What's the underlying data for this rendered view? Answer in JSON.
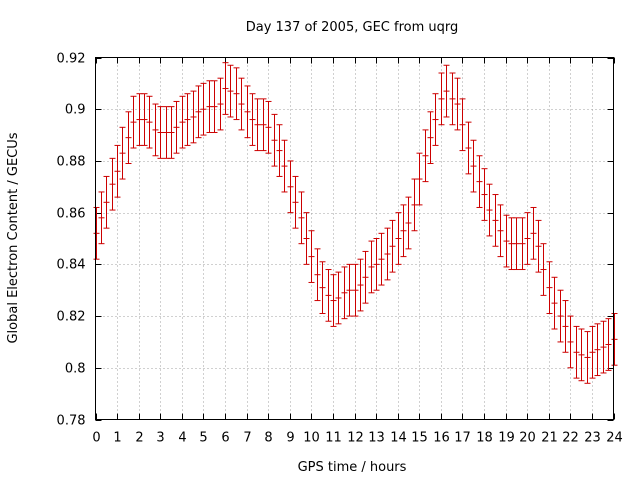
{
  "chart_data": {
    "type": "errorbar",
    "title": "Day 137 of 2005, GEC from uqrg",
    "xlabel": "GPS time / hours",
    "ylabel": "Global Electron Content / GECUs",
    "xlim": [
      0,
      24
    ],
    "ylim": [
      0.78,
      0.92
    ],
    "x_ticks": [
      0,
      1,
      2,
      3,
      4,
      5,
      6,
      7,
      8,
      9,
      10,
      11,
      12,
      13,
      14,
      15,
      16,
      17,
      18,
      19,
      20,
      21,
      22,
      23,
      24
    ],
    "y_ticks": [
      0.78,
      0.8,
      0.82,
      0.84,
      0.86,
      0.88,
      0.9,
      0.92
    ],
    "grid": true,
    "color": "#cc0000",
    "error": 0.01,
    "series": [
      {
        "name": "GEC",
        "x": [
          0,
          0.25,
          0.5,
          0.75,
          1,
          1.25,
          1.5,
          1.75,
          2,
          2.25,
          2.5,
          2.75,
          3,
          3.25,
          3.5,
          3.75,
          4,
          4.25,
          4.5,
          4.75,
          5,
          5.25,
          5.5,
          5.75,
          6,
          6.25,
          6.5,
          6.75,
          7,
          7.25,
          7.5,
          7.75,
          8,
          8.25,
          8.5,
          8.75,
          9,
          9.25,
          9.5,
          9.75,
          10,
          10.25,
          10.5,
          10.75,
          11,
          11.25,
          11.5,
          11.75,
          12,
          12.25,
          12.5,
          12.75,
          13,
          13.25,
          13.5,
          13.75,
          14,
          14.25,
          14.5,
          14.75,
          15,
          15.25,
          15.5,
          15.75,
          16,
          16.25,
          16.5,
          16.75,
          17,
          17.25,
          17.5,
          17.75,
          18,
          18.25,
          18.5,
          18.75,
          19,
          19.25,
          19.5,
          19.75,
          20,
          20.25,
          20.5,
          20.75,
          21,
          21.25,
          21.5,
          21.75,
          22,
          22.25,
          22.5,
          22.75,
          23,
          23.25,
          23.5,
          23.75,
          24
        ],
        "y": [
          0.852,
          0.858,
          0.864,
          0.871,
          0.876,
          0.883,
          0.889,
          0.895,
          0.896,
          0.896,
          0.895,
          0.892,
          0.891,
          0.891,
          0.891,
          0.893,
          0.895,
          0.896,
          0.897,
          0.899,
          0.9,
          0.901,
          0.901,
          0.902,
          0.908,
          0.907,
          0.906,
          0.902,
          0.899,
          0.896,
          0.894,
          0.894,
          0.893,
          0.888,
          0.884,
          0.878,
          0.87,
          0.864,
          0.858,
          0.85,
          0.843,
          0.836,
          0.831,
          0.828,
          0.826,
          0.827,
          0.829,
          0.83,
          0.83,
          0.832,
          0.835,
          0.839,
          0.84,
          0.842,
          0.844,
          0.847,
          0.85,
          0.853,
          0.856,
          0.863,
          0.873,
          0.882,
          0.889,
          0.896,
          0.904,
          0.907,
          0.904,
          0.902,
          0.894,
          0.885,
          0.878,
          0.872,
          0.867,
          0.861,
          0.857,
          0.853,
          0.849,
          0.848,
          0.848,
          0.848,
          0.85,
          0.852,
          0.847,
          0.838,
          0.831,
          0.825,
          0.82,
          0.816,
          0.81,
          0.806,
          0.805,
          0.804,
          0.806,
          0.807,
          0.808,
          0.809,
          0.811
        ]
      }
    ]
  }
}
